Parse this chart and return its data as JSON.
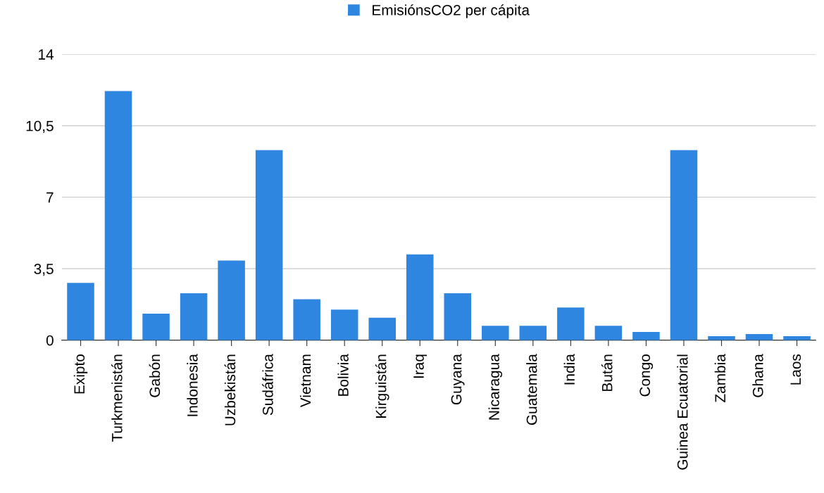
{
  "chart_data": {
    "type": "bar",
    "categories": [
      "Exipto",
      "Turkmenistán",
      "Gabón",
      "Indonesia",
      "Uzbekistán",
      "Sudáfrica",
      "Vietnam",
      "Bolivia",
      "Kirguistán",
      "Iraq",
      "Guyana",
      "Nicaragua",
      "Guatemala",
      "India",
      "Bután",
      "Congo",
      "Guinea Ecuatorial",
      "Zambia",
      "Ghana",
      "Laos"
    ],
    "series": [
      {
        "name": "EmisiónsCO2 per cápita",
        "color": "#2f86e0",
        "values": [
          2.8,
          12.2,
          1.3,
          2.3,
          3.9,
          9.3,
          2.0,
          1.5,
          1.1,
          4.2,
          2.3,
          0.7,
          0.7,
          1.6,
          0.7,
          0.4,
          9.3,
          0.2,
          0.3,
          0.2
        ]
      }
    ],
    "ylim": [
      0,
      14
    ],
    "yticks": [
      0,
      {
        "value": 3.5,
        "label": "3,5"
      },
      7,
      {
        "value": 10.5,
        "label": "10,5"
      },
      14
    ],
    "grid": "y",
    "legend": "top"
  }
}
